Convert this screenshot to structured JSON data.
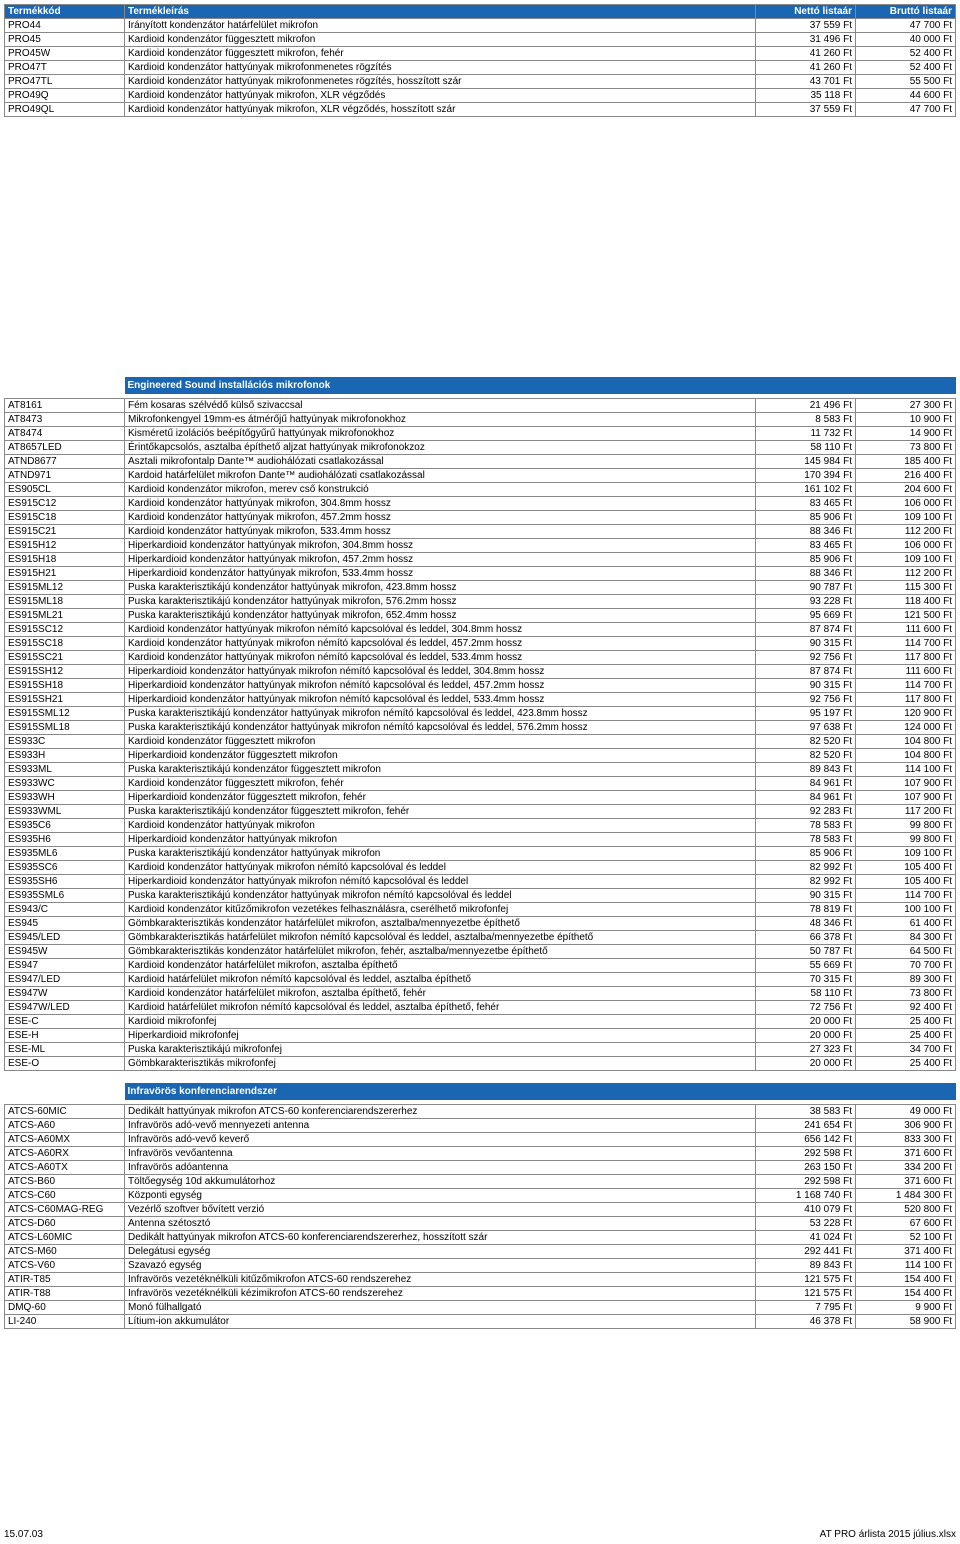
{
  "header": {
    "col1": "Termékkód",
    "col2": "Termékleírás",
    "col3": "Nettó listaár",
    "col4": "Bruttó listaár"
  },
  "section1_rows": [
    [
      "PRO44",
      "Irányított kondenzátor határfelület mikrofon",
      "37 559 Ft",
      "47 700 Ft"
    ],
    [
      "PRO45",
      "Kardioid kondenzátor függesztett mikrofon",
      "31 496 Ft",
      "40 000 Ft"
    ],
    [
      "PRO45W",
      "Kardioid kondenzátor függesztett mikrofon, fehér",
      "41 260 Ft",
      "52 400 Ft"
    ],
    [
      "PRO47T",
      "Kardioid kondenzátor hattyúnyak mikrofonmenetes rögzítés",
      "41 260 Ft",
      "52 400 Ft"
    ],
    [
      "PRO47TL",
      "Kardioid kondenzátor hattyúnyak mikrofonmenetes rögzítés, hosszított szár",
      "43 701 Ft",
      "55 500 Ft"
    ],
    [
      "PRO49Q",
      "Kardioid kondenzátor hattyúnyak mikrofon, XLR végződés",
      "35 118 Ft",
      "44 600 Ft"
    ],
    [
      "PRO49QL",
      "Kardioid kondenzátor hattyúnyak mikrofon, XLR végződés, hosszított szár",
      "37 559 Ft",
      "47 700 Ft"
    ]
  ],
  "section2_title": "Engineered Sound installációs mikrofonok",
  "section2_rows": [
    [
      "AT8161",
      "Fém kosaras szélvédő külső szivaccsal",
      "21 496 Ft",
      "27 300 Ft"
    ],
    [
      "AT8473",
      "Mikrofonkengyel 19mm-es átmérőjű hattyúnyak mikrofonokhoz",
      "8 583 Ft",
      "10 900 Ft"
    ],
    [
      "AT8474",
      "Kisméretű izolációs beépítőgyűrű hattyúnyak mikrofonokhoz",
      "11 732 Ft",
      "14 900 Ft"
    ],
    [
      "AT8657LED",
      "Érintőkapcsolós, asztalba építhető aljzat hattyúnyak mikrofonokzoz",
      "58 110 Ft",
      "73 800 Ft"
    ],
    [
      "ATND8677",
      "Asztali mikrofontalp Dante™ audiohálózati csatlakozással",
      "145 984 Ft",
      "185 400 Ft"
    ],
    [
      "ATND971",
      "Kardoid határfelület mikrofon Dante™ audiohálózati csatlakozással",
      "170 394 Ft",
      "216 400 Ft"
    ],
    [
      "ES905CL",
      "Kardioid kondenzátor mikrofon, merev cső konstrukció",
      "161 102 Ft",
      "204 600 Ft"
    ],
    [
      "ES915C12",
      "Kardioid kondenzátor hattyúnyak mikrofon, 304.8mm hossz",
      "83 465 Ft",
      "106 000 Ft"
    ],
    [
      "ES915C18",
      "Kardioid kondenzátor hattyúnyak mikrofon, 457.2mm hossz",
      "85 906 Ft",
      "109 100 Ft"
    ],
    [
      "ES915C21",
      "Kardioid kondenzátor hattyúnyak mikrofon, 533.4mm hossz",
      "88 346 Ft",
      "112 200 Ft"
    ],
    [
      "ES915H12",
      "Hiperkardioid kondenzátor hattyúnyak mikrofon, 304.8mm hossz",
      "83 465 Ft",
      "106 000 Ft"
    ],
    [
      "ES915H18",
      "Hiperkardioid kondenzátor hattyúnyak mikrofon, 457.2mm hossz",
      "85 906 Ft",
      "109 100 Ft"
    ],
    [
      "ES915H21",
      "Hiperkardioid kondenzátor hattyúnyak mikrofon, 533.4mm hossz",
      "88 346 Ft",
      "112 200 Ft"
    ],
    [
      "ES915ML12",
      "Puska karakterisztikájú kondenzátor hattyúnyak mikrofon, 423.8mm hossz",
      "90 787 Ft",
      "115 300 Ft"
    ],
    [
      "ES915ML18",
      "Puska karakterisztikájú kondenzátor hattyúnyak mikrofon, 576.2mm hossz",
      "93 228 Ft",
      "118 400 Ft"
    ],
    [
      "ES915ML21",
      "Puska karakterisztikájú kondenzátor hattyúnyak mikrofon, 652.4mm hossz",
      "95 669 Ft",
      "121 500 Ft"
    ],
    [
      "ES915SC12",
      "Kardioid kondenzátor hattyúnyak mikrofon némító kapcsolóval és leddel, 304.8mm hossz",
      "87 874 Ft",
      "111 600 Ft"
    ],
    [
      "ES915SC18",
      "Kardioid kondenzátor hattyúnyak mikrofon némító kapcsolóval és leddel, 457.2mm hossz",
      "90 315 Ft",
      "114 700 Ft"
    ],
    [
      "ES915SC21",
      "Kardioid kondenzátor hattyúnyak mikrofon némító kapcsolóval és leddel, 533.4mm hossz",
      "92 756 Ft",
      "117 800 Ft"
    ],
    [
      "ES915SH12",
      "Hiperkardioid kondenzátor hattyúnyak mikrofon némító kapcsolóval és leddel, 304.8mm hossz",
      "87 874 Ft",
      "111 600 Ft"
    ],
    [
      "ES915SH18",
      "Hiperkardioid kondenzátor hattyúnyak mikrofon némító kapcsolóval és leddel, 457.2mm hossz",
      "90 315 Ft",
      "114 700 Ft"
    ],
    [
      "ES915SH21",
      "Hiperkardioid kondenzátor hattyúnyak mikrofon némító kapcsolóval és leddel, 533.4mm hossz",
      "92 756 Ft",
      "117 800 Ft"
    ],
    [
      "ES915SML12",
      "Puska karakterisztikájú kondenzátor hattyúnyak mikrofon némító kapcsolóval és leddel, 423.8mm hossz",
      "95 197 Ft",
      "120 900 Ft"
    ],
    [
      "ES915SML18",
      "Puska karakterisztikájú kondenzátor hattyúnyak mikrofon némító kapcsolóval és leddel, 576.2mm hossz",
      "97 638 Ft",
      "124 000 Ft"
    ],
    [
      "ES933C",
      "Kardioid kondenzátor függesztett mikrofon",
      "82 520 Ft",
      "104 800 Ft"
    ],
    [
      "ES933H",
      "Hiperkardioid kondenzátor függesztett mikrofon",
      "82 520 Ft",
      "104 800 Ft"
    ],
    [
      "ES933ML",
      "Puska karakterisztikájú kondenzátor függesztett mikrofon",
      "89 843 Ft",
      "114 100 Ft"
    ],
    [
      "ES933WC",
      "Kardioid kondenzátor függesztett mikrofon, fehér",
      "84 961 Ft",
      "107 900 Ft"
    ],
    [
      "ES933WH",
      "Hiperkardioid kondenzátor függesztett mikrofon, fehér",
      "84 961 Ft",
      "107 900 Ft"
    ],
    [
      "ES933WML",
      "Puska karakterisztikájú kondenzátor függesztett mikrofon, fehér",
      "92 283 Ft",
      "117 200 Ft"
    ],
    [
      "ES935C6",
      "Kardioid kondenzátor hattyúnyak mikrofon",
      "78 583 Ft",
      "99 800 Ft"
    ],
    [
      "ES935H6",
      "Hiperkardioid kondenzátor hattyúnyak mikrofon",
      "78 583 Ft",
      "99 800 Ft"
    ],
    [
      "ES935ML6",
      "Puska karakterisztikájú kondenzátor hattyúnyak mikrofon",
      "85 906 Ft",
      "109 100 Ft"
    ],
    [
      "ES935SC6",
      "Kardioid kondenzátor hattyúnyak mikrofon némító kapcsolóval és leddel",
      "82 992 Ft",
      "105 400 Ft"
    ],
    [
      "ES935SH6",
      "Hiperkardioid kondenzátor hattyúnyak mikrofon némító kapcsolóval és leddel",
      "82 992 Ft",
      "105 400 Ft"
    ],
    [
      "ES935SML6",
      "Puska karakterisztikájú kondenzátor hattyúnyak mikrofon némító kapcsolóval és leddel",
      "90 315 Ft",
      "114 700 Ft"
    ],
    [
      "ES943/C",
      "Kardioid kondenzátor kitűzőmikrofon vezetékes felhasználásra, cserélhető mikrofonfej",
      "78 819 Ft",
      "100 100 Ft"
    ],
    [
      "ES945",
      "Gömbkarakterisztikás kondenzátor határfelület mikrofon, asztalba/mennyezetbe építhető",
      "48 346 Ft",
      "61 400 Ft"
    ],
    [
      "ES945/LED",
      "Gömbkarakterisztikás határfelület mikrofon némító kapcsolóval és leddel, asztalba/mennyezetbe építhető",
      "66 378 Ft",
      "84 300 Ft"
    ],
    [
      "ES945W",
      "Gömbkarakterisztikás kondenzátor határfelület mikrofon, fehér, asztalba/mennyezetbe építhető",
      "50 787 Ft",
      "64 500 Ft"
    ],
    [
      "ES947",
      "Kardioid kondenzátor határfelület mikrofon, asztalba építhető",
      "55 669 Ft",
      "70 700 Ft"
    ],
    [
      "ES947/LED",
      "Kardioid határfelület mikrofon némító kapcsolóval és leddel, asztalba építhető",
      "70 315 Ft",
      "89 300 Ft"
    ],
    [
      "ES947W",
      "Kardioid kondenzátor határfelület mikrofon, asztalba építhető, fehér",
      "58 110 Ft",
      "73 800 Ft"
    ],
    [
      "ES947W/LED",
      "Kardioid határfelület mikrofon némító kapcsolóval és leddel, asztalba építhető, fehér",
      "72 756 Ft",
      "92 400 Ft"
    ],
    [
      "ESE-C",
      "Kardioid mikrofonfej",
      "20 000 Ft",
      "25 400 Ft"
    ],
    [
      "ESE-H",
      "Hiperkardioid mikrofonfej",
      "20 000 Ft",
      "25 400 Ft"
    ],
    [
      "ESE-ML",
      "Puska karakterisztikájú mikrofonfej",
      "27 323 Ft",
      "34 700 Ft"
    ],
    [
      "ESE-O",
      "Gömbkarakterisztikás mikrofonfej",
      "20 000 Ft",
      "25 400 Ft"
    ]
  ],
  "section3_title": "Infravörös konferenciarendszer",
  "section3_rows": [
    [
      "ATCS-60MIC",
      "Dedikált hattyúnyak mikrofon ATCS-60 konferenciarendszererhez",
      "38 583 Ft",
      "49 000 Ft"
    ],
    [
      "ATCS-A60",
      "Infravörös adó-vevő mennyezeti antenna",
      "241 654 Ft",
      "306 900 Ft"
    ],
    [
      "ATCS-A60MX",
      "Infravörös adó-vevő keverő",
      "656 142 Ft",
      "833 300 Ft"
    ],
    [
      "ATCS-A60RX",
      "Infravörös vevőantenna",
      "292 598 Ft",
      "371 600 Ft"
    ],
    [
      "ATCS-A60TX",
      "Infravörös adóantenna",
      "263 150 Ft",
      "334 200 Ft"
    ],
    [
      "ATCS-B60",
      "Töltőegység 10d akkumulátorhoz",
      "292 598 Ft",
      "371 600 Ft"
    ],
    [
      "ATCS-C60",
      "Központi egység",
      "1 168 740 Ft",
      "1 484 300 Ft"
    ],
    [
      "ATCS-C60MAG-REG",
      "Vezérlő szoftver bővített verzió",
      "410 079 Ft",
      "520 800 Ft"
    ],
    [
      "ATCS-D60",
      "Antenna szétosztó",
      "53 228 Ft",
      "67 600 Ft"
    ],
    [
      "ATCS-L60MIC",
      "Dedikált hattyúnyak mikrofon ATCS-60 konferenciarendszererhez, hosszított szár",
      "41 024 Ft",
      "52 100 Ft"
    ],
    [
      "ATCS-M60",
      "Delegátusi egység",
      "292 441 Ft",
      "371 400 Ft"
    ],
    [
      "ATCS-V60",
      "Szavazó egység",
      "89 843 Ft",
      "114 100 Ft"
    ],
    [
      "ATIR-T85",
      "Infravörös vezetéknélküli kitűzőmikrofon ATCS-60 rendszerehez",
      "121 575 Ft",
      "154 400 Ft"
    ],
    [
      "ATIR-T88",
      "Infravörös vezetéknélküli kézimikrofon ATCS-60 rendszerehez",
      "121 575 Ft",
      "154 400 Ft"
    ],
    [
      "DMQ-60",
      "Monó fülhallgató",
      "7 795 Ft",
      "9 900 Ft"
    ],
    [
      "LI-240",
      "Lítium-ion akkumulátor",
      "46 378 Ft",
      "58 900 Ft"
    ]
  ],
  "footer": {
    "left": "15.07.03",
    "right": "AT PRO árlista 2015 július.xlsx"
  }
}
